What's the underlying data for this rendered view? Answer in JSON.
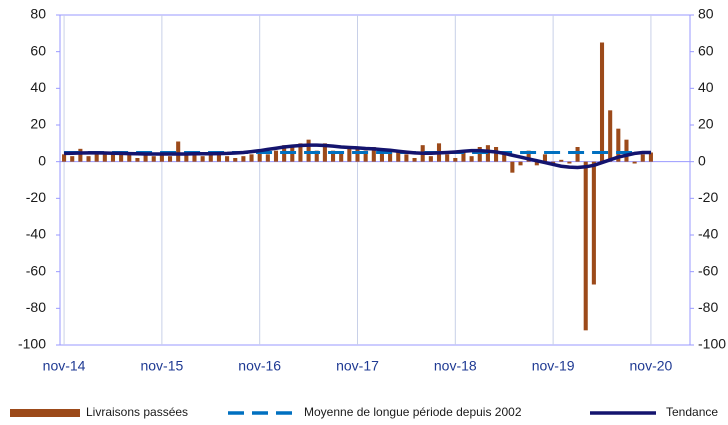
{
  "chart_data": {
    "type": "bar",
    "categories": [
      "nov-14",
      null,
      null,
      null,
      null,
      null,
      null,
      null,
      null,
      null,
      null,
      null,
      "nov-15",
      null,
      null,
      null,
      null,
      null,
      null,
      null,
      null,
      null,
      null,
      null,
      "nov-16",
      null,
      null,
      null,
      null,
      null,
      null,
      null,
      null,
      null,
      null,
      null,
      "nov-17",
      null,
      null,
      null,
      null,
      null,
      null,
      null,
      null,
      null,
      null,
      null,
      "nov-18",
      null,
      null,
      null,
      null,
      null,
      null,
      null,
      null,
      null,
      null,
      null,
      "nov-19",
      null,
      null,
      null,
      null,
      null,
      null,
      null,
      null,
      null,
      null,
      null,
      "nov-20"
    ],
    "series": [
      {
        "name": "Livraisons passées",
        "type": "bar",
        "color": "#9c4a1a",
        "values": [
          4,
          3,
          7,
          3,
          5,
          4,
          5,
          5,
          4,
          2,
          4,
          3,
          4,
          3,
          11,
          4,
          5,
          3,
          4,
          4,
          3,
          2,
          3,
          4,
          5,
          4,
          6,
          9,
          8,
          10,
          12,
          6,
          10,
          6,
          5,
          8,
          8,
          6,
          8,
          7,
          6,
          5,
          4,
          2,
          9,
          3,
          10,
          4,
          2,
          6,
          3,
          8,
          9,
          8,
          5,
          -6,
          -2,
          6,
          -2,
          4,
          -2,
          1,
          -1,
          8,
          -92,
          -67,
          65,
          28,
          18,
          12,
          -1,
          4,
          5
        ]
      },
      {
        "name": "Moyenne de longue période depuis 2002",
        "type": "line",
        "dashed": true,
        "color": "#0070c0",
        "values": [
          5,
          5,
          5,
          5,
          5,
          5,
          5,
          5,
          5,
          5,
          5,
          5,
          5,
          5,
          5,
          5,
          5,
          5,
          5,
          5,
          5,
          5,
          5,
          5,
          5,
          5,
          5,
          5,
          5,
          5,
          5,
          5,
          5,
          5,
          5,
          5,
          5,
          5,
          5,
          5,
          5,
          5,
          5,
          5,
          5,
          5,
          5,
          5,
          5,
          5,
          5,
          5,
          5,
          5,
          5,
          5,
          5,
          5,
          5,
          5,
          5,
          5,
          5,
          5,
          5,
          5,
          5,
          5,
          5,
          5,
          5,
          5,
          5
        ]
      },
      {
        "name": "Tendance",
        "type": "line",
        "color": "#14146e",
        "values": [
          4.5,
          4.6,
          4.7,
          4.8,
          4.8,
          4.7,
          4.6,
          4.5,
          4.4,
          4.3,
          4.2,
          4.2,
          4.2,
          4.2,
          4.2,
          4.2,
          4.3,
          4.3,
          4.3,
          4.4,
          4.5,
          4.7,
          5,
          5.5,
          6,
          6.7,
          7.3,
          8,
          8.5,
          8.8,
          9,
          9,
          8.8,
          8.5,
          8,
          7.7,
          7.5,
          7.2,
          7,
          6.6,
          6.2,
          5.7,
          5.2,
          4.8,
          4.6,
          4.6,
          4.8,
          5,
          5.3,
          5.7,
          6,
          6,
          5.7,
          5.3,
          4.5,
          3.5,
          2.5,
          1.5,
          0.5,
          -0.5,
          -1.5,
          -2.5,
          -3,
          -3.2,
          -2.8,
          -2,
          -0.5,
          1,
          2.5,
          3.5,
          4.5,
          5,
          5
        ]
      }
    ],
    "ylim": [
      -100,
      80
    ],
    "yticks": [
      -100,
      -80,
      -60,
      -40,
      -20,
      0,
      20,
      40,
      60,
      80
    ],
    "y2lim": [
      -100,
      80
    ],
    "y2ticks": [
      -100,
      -80,
      -60,
      -40,
      -20,
      0,
      20,
      40,
      60,
      80
    ],
    "grid": true,
    "legend": "bottom"
  }
}
